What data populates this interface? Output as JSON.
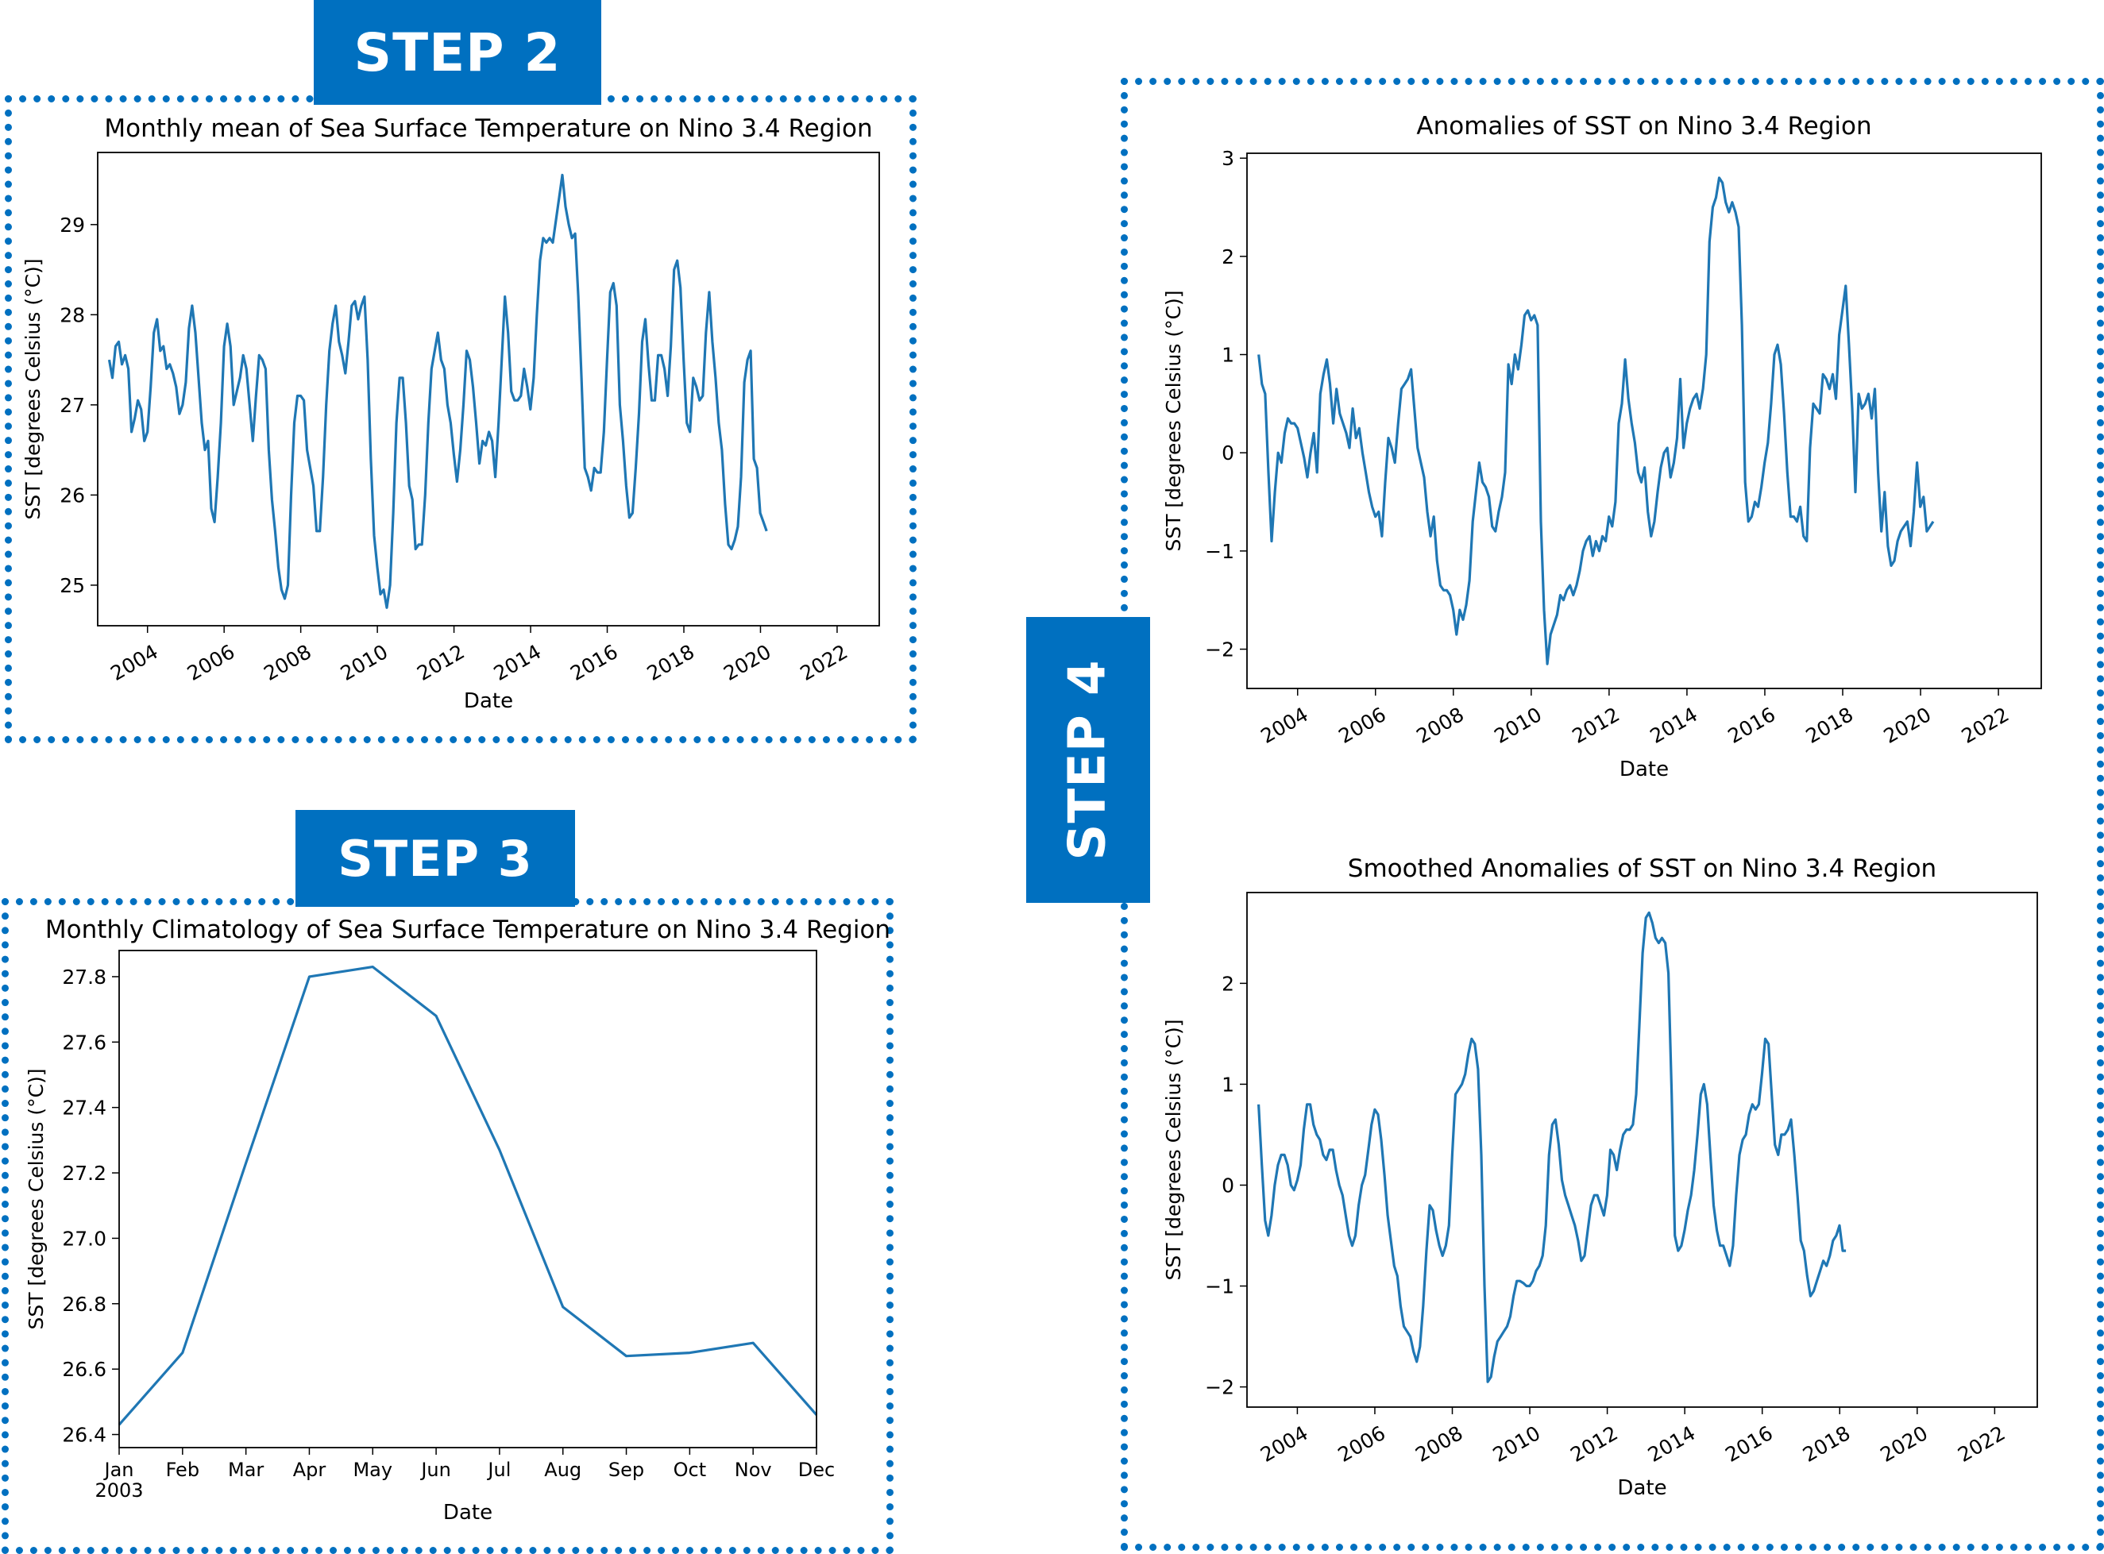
{
  "steps": {
    "step2": "STEP 2",
    "step3": "STEP 3",
    "step4": "STEP 4"
  },
  "colors": {
    "step_fill": "#0070c0",
    "border": "#0070c0",
    "line": "#1f77b4"
  },
  "chart_data": [
    {
      "id": "monthly_mean",
      "type": "line",
      "title": "Monthly mean of Sea Surface Temperature on Nino 3.4 Region",
      "xlabel": "Date",
      "ylabel": "SST [degrees Celsius (°C)]",
      "xlim": [
        2002.7,
        2023.1
      ],
      "ylim": [
        24.55,
        29.8
      ],
      "x_ticks": [
        2004,
        2006,
        2008,
        2010,
        2012,
        2014,
        2016,
        2018,
        2020,
        2022
      ],
      "x_tick_labels": [
        "2004",
        "2006",
        "2008",
        "2010",
        "2012",
        "2014",
        "2016",
        "2018",
        "2020",
        "2022"
      ],
      "y_ticks": [
        25,
        26,
        27,
        28,
        29
      ],
      "y_tick_labels": [
        "25",
        "26",
        "27",
        "28",
        "29"
      ],
      "x_start": 2003.0,
      "x_step": 0.0833,
      "values": [
        27.5,
        27.3,
        27.65,
        27.7,
        27.45,
        27.55,
        27.4,
        26.7,
        26.85,
        27.05,
        26.95,
        26.6,
        26.7,
        27.2,
        27.8,
        27.95,
        27.6,
        27.65,
        27.4,
        27.45,
        27.35,
        27.2,
        26.9,
        27.0,
        27.25,
        27.85,
        28.1,
        27.8,
        27.3,
        26.8,
        26.5,
        26.6,
        25.85,
        25.7,
        26.2,
        26.8,
        27.65,
        27.9,
        27.65,
        27.0,
        27.15,
        27.3,
        27.55,
        27.4,
        27.0,
        26.6,
        27.1,
        27.55,
        27.5,
        27.4,
        26.5,
        25.95,
        25.6,
        25.2,
        24.95,
        24.85,
        25.0,
        26.0,
        26.8,
        27.1,
        27.1,
        27.05,
        26.5,
        26.3,
        26.1,
        25.6,
        25.6,
        26.2,
        27.0,
        27.6,
        27.9,
        28.1,
        27.7,
        27.55,
        27.35,
        27.7,
        28.1,
        28.15,
        27.95,
        28.1,
        28.2,
        27.5,
        26.4,
        25.55,
        25.2,
        24.9,
        24.95,
        24.75,
        25.0,
        25.8,
        26.8,
        27.3,
        27.3,
        26.8,
        26.1,
        25.95,
        25.4,
        25.45,
        25.45,
        26.0,
        26.8,
        27.4,
        27.6,
        27.8,
        27.5,
        27.4,
        27.0,
        26.8,
        26.45,
        26.15,
        26.5,
        27.0,
        27.6,
        27.5,
        27.2,
        26.8,
        26.35,
        26.6,
        26.55,
        26.7,
        26.6,
        26.2,
        26.8,
        27.5,
        28.2,
        27.8,
        27.15,
        27.05,
        27.05,
        27.1,
        27.4,
        27.2,
        26.95,
        27.3,
        28.0,
        28.6,
        28.85,
        28.8,
        28.85,
        28.8,
        29.05,
        29.3,
        29.55,
        29.2,
        29.0,
        28.85,
        28.9,
        28.2,
        27.3,
        26.3,
        26.2,
        26.05,
        26.3,
        26.25,
        26.25,
        26.7,
        27.5,
        28.25,
        28.35,
        28.1,
        27.0,
        26.6,
        26.1,
        25.75,
        25.8,
        26.3,
        26.9,
        27.7,
        27.95,
        27.45,
        27.05,
        27.05,
        27.55,
        27.55,
        27.4,
        27.1,
        27.65,
        28.5,
        28.6,
        28.3,
        27.5,
        26.8,
        26.7,
        27.3,
        27.2,
        27.05,
        27.1,
        27.8,
        28.25,
        27.7,
        27.3,
        26.8,
        26.5,
        25.9,
        25.45,
        25.4,
        25.5,
        25.65,
        26.2,
        27.25,
        27.5,
        27.6,
        26.4,
        26.3,
        25.8,
        25.7,
        25.6
      ]
    },
    {
      "id": "climatology",
      "type": "line",
      "title": "Monthly Climatology of Sea Surface Temperature on Nino 3.4 Region",
      "xlabel": "Date",
      "ylabel": "SST [degrees Celsius (°C)]",
      "ylim": [
        26.36,
        27.88
      ],
      "categories": [
        "Jan",
        "Feb",
        "Mar",
        "Apr",
        "May",
        "Jun",
        "Jul",
        "Aug",
        "Sep",
        "Oct",
        "Nov",
        "Dec"
      ],
      "first_tick_sublabel": "2003",
      "y_ticks": [
        26.4,
        26.6,
        26.8,
        27.0,
        27.2,
        27.4,
        27.6,
        27.8
      ],
      "y_tick_labels": [
        "26.4",
        "26.6",
        "26.8",
        "27.0",
        "27.2",
        "27.4",
        "27.6",
        "27.8"
      ],
      "values": [
        26.43,
        26.65,
        27.23,
        27.8,
        27.83,
        27.68,
        27.27,
        26.79,
        26.64,
        26.65,
        26.68,
        26.46
      ]
    },
    {
      "id": "anomalies",
      "type": "line",
      "title": "Anomalies of SST on Nino 3.4 Region",
      "xlabel": "Date",
      "ylabel": "SST [degrees Celsius (°C)]",
      "xlim": [
        2002.7,
        2023.1
      ],
      "ylim": [
        -2.4,
        3.05
      ],
      "x_ticks": [
        2004,
        2006,
        2008,
        2010,
        2012,
        2014,
        2016,
        2018,
        2020,
        2022
      ],
      "x_tick_labels": [
        "2004",
        "2006",
        "2008",
        "2010",
        "2012",
        "2014",
        "2016",
        "2018",
        "2020",
        "2022"
      ],
      "y_ticks": [
        -2,
        -1,
        0,
        1,
        2,
        3
      ],
      "y_tick_labels": [
        "−2",
        "−1",
        "0",
        "1",
        "2",
        "3"
      ],
      "x_start": 2003.0,
      "x_step": 0.0833,
      "values": [
        1.0,
        0.7,
        0.6,
        -0.2,
        -0.9,
        -0.4,
        0.0,
        -0.1,
        0.2,
        0.35,
        0.3,
        0.3,
        0.25,
        0.1,
        -0.05,
        -0.25,
        0.0,
        0.2,
        -0.2,
        0.6,
        0.8,
        0.95,
        0.7,
        0.3,
        0.65,
        0.4,
        0.3,
        0.2,
        0.05,
        0.45,
        0.15,
        0.25,
        0.0,
        -0.2,
        -0.4,
        -0.55,
        -0.65,
        -0.6,
        -0.85,
        -0.3,
        0.15,
        0.05,
        -0.1,
        0.3,
        0.65,
        0.7,
        0.75,
        0.85,
        0.45,
        0.05,
        -0.1,
        -0.25,
        -0.6,
        -0.85,
        -0.65,
        -1.1,
        -1.35,
        -1.4,
        -1.4,
        -1.45,
        -1.6,
        -1.85,
        -1.6,
        -1.7,
        -1.55,
        -1.3,
        -0.7,
        -0.4,
        -0.1,
        -0.3,
        -0.35,
        -0.45,
        -0.75,
        -0.8,
        -0.6,
        -0.45,
        -0.2,
        0.9,
        0.7,
        1.0,
        0.85,
        1.1,
        1.4,
        1.45,
        1.35,
        1.4,
        1.3,
        -0.7,
        -1.6,
        -2.15,
        -1.85,
        -1.75,
        -1.65,
        -1.45,
        -1.5,
        -1.4,
        -1.35,
        -1.45,
        -1.35,
        -1.2,
        -1.0,
        -0.9,
        -0.85,
        -1.05,
        -0.9,
        -1.0,
        -0.85,
        -0.9,
        -0.65,
        -0.75,
        -0.5,
        0.3,
        0.5,
        0.95,
        0.55,
        0.3,
        0.1,
        -0.2,
        -0.3,
        -0.15,
        -0.6,
        -0.85,
        -0.7,
        -0.4,
        -0.15,
        0.0,
        0.05,
        -0.25,
        -0.1,
        0.15,
        0.75,
        0.05,
        0.3,
        0.45,
        0.55,
        0.6,
        0.45,
        0.65,
        1.0,
        2.15,
        2.5,
        2.6,
        2.8,
        2.75,
        2.55,
        2.45,
        2.55,
        2.45,
        2.3,
        1.3,
        -0.3,
        -0.7,
        -0.65,
        -0.5,
        -0.55,
        -0.35,
        -0.1,
        0.1,
        0.5,
        1.0,
        1.1,
        0.9,
        0.4,
        -0.2,
        -0.65,
        -0.65,
        -0.7,
        -0.55,
        -0.85,
        -0.9,
        0.05,
        0.5,
        0.45,
        0.4,
        0.8,
        0.75,
        0.65,
        0.8,
        0.55,
        1.2,
        1.45,
        1.7,
        1.1,
        0.45,
        -0.4,
        0.6,
        0.45,
        0.5,
        0.6,
        0.35,
        0.65,
        -0.2,
        -0.8,
        -0.4,
        -0.95,
        -1.15,
        -1.1,
        -0.9,
        -0.8,
        -0.75,
        -0.7,
        -0.95,
        -0.6,
        -0.1,
        -0.55,
        -0.45,
        -0.8,
        -0.75,
        -0.7
      ]
    },
    {
      "id": "smoothed",
      "type": "line",
      "title": "Smoothed Anomalies of SST on Nino 3.4 Region",
      "xlabel": "Date",
      "ylabel": "SST [degrees Celsius (°C)]",
      "xlim": [
        2002.7,
        2023.1
      ],
      "ylim": [
        -2.2,
        2.9
      ],
      "x_ticks": [
        2004,
        2006,
        2008,
        2010,
        2012,
        2014,
        2016,
        2018,
        2020,
        2022
      ],
      "x_tick_labels": [
        "2004",
        "2006",
        "2008",
        "2010",
        "2012",
        "2014",
        "2016",
        "2018",
        "2020",
        "2022"
      ],
      "y_ticks": [
        -2,
        -1,
        0,
        1,
        2
      ],
      "y_tick_labels": [
        "−2",
        "−1",
        "0",
        "1",
        "2"
      ],
      "x_start": 2003.0,
      "x_step": 0.0833,
      "values": [
        0.8,
        0.2,
        -0.35,
        -0.5,
        -0.3,
        0.0,
        0.2,
        0.3,
        0.3,
        0.2,
        0.0,
        -0.05,
        0.05,
        0.2,
        0.55,
        0.8,
        0.8,
        0.6,
        0.5,
        0.45,
        0.3,
        0.25,
        0.35,
        0.35,
        0.15,
        0.0,
        -0.1,
        -0.3,
        -0.5,
        -0.6,
        -0.5,
        -0.2,
        0.0,
        0.1,
        0.35,
        0.6,
        0.75,
        0.7,
        0.45,
        0.1,
        -0.3,
        -0.55,
        -0.8,
        -0.9,
        -1.2,
        -1.4,
        -1.45,
        -1.5,
        -1.65,
        -1.75,
        -1.6,
        -1.2,
        -0.65,
        -0.2,
        -0.25,
        -0.45,
        -0.6,
        -0.7,
        -0.6,
        -0.4,
        0.3,
        0.9,
        0.95,
        1.0,
        1.1,
        1.3,
        1.45,
        1.4,
        1.15,
        0.3,
        -1.0,
        -1.95,
        -1.9,
        -1.7,
        -1.55,
        -1.5,
        -1.45,
        -1.4,
        -1.3,
        -1.1,
        -0.95,
        -0.95,
        -0.97,
        -1.0,
        -1.0,
        -0.95,
        -0.85,
        -0.8,
        -0.7,
        -0.4,
        0.3,
        0.6,
        0.65,
        0.4,
        0.05,
        -0.1,
        -0.2,
        -0.3,
        -0.4,
        -0.55,
        -0.75,
        -0.7,
        -0.45,
        -0.2,
        -0.1,
        -0.1,
        -0.2,
        -0.3,
        -0.1,
        0.35,
        0.3,
        0.15,
        0.35,
        0.5,
        0.55,
        0.55,
        0.6,
        0.9,
        1.6,
        2.3,
        2.65,
        2.7,
        2.6,
        2.45,
        2.4,
        2.45,
        2.4,
        2.1,
        0.9,
        -0.5,
        -0.65,
        -0.6,
        -0.45,
        -0.25,
        -0.1,
        0.15,
        0.5,
        0.9,
        1.0,
        0.8,
        0.3,
        -0.2,
        -0.45,
        -0.6,
        -0.6,
        -0.7,
        -0.8,
        -0.6,
        -0.1,
        0.3,
        0.45,
        0.5,
        0.7,
        0.8,
        0.75,
        0.8,
        1.1,
        1.45,
        1.4,
        0.9,
        0.4,
        0.3,
        0.5,
        0.5,
        0.55,
        0.65,
        0.3,
        -0.1,
        -0.55,
        -0.65,
        -0.9,
        -1.1,
        -1.05,
        -0.95,
        -0.85,
        -0.75,
        -0.8,
        -0.7,
        -0.55,
        -0.5,
        -0.4,
        -0.65,
        -0.65
      ]
    }
  ]
}
